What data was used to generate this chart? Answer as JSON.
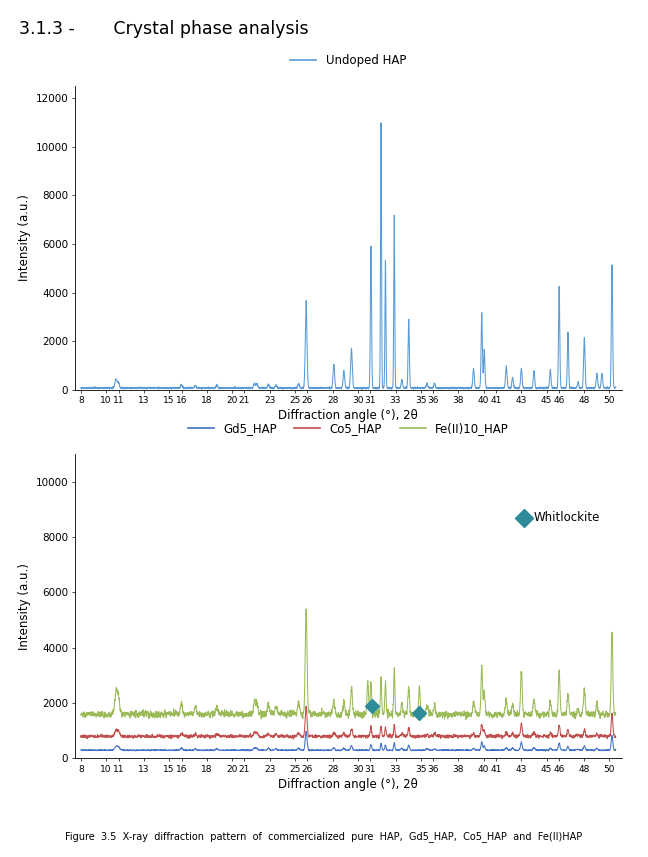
{
  "title_section": "3.1.3 -       Crystal phase analysis",
  "plot1_legend": "Undoped HAP",
  "plot1_color": "#5b9bd5",
  "plot1_ylabel": "Intensity (a.u.)",
  "plot1_xlabel": "Diffraction angle (°), 2θ",
  "plot1_ylim": [
    0,
    12500
  ],
  "plot1_yticks": [
    0,
    2000,
    4000,
    6000,
    8000,
    10000,
    12000
  ],
  "plot2_legend": [
    "Gd5_HAP",
    "Co5_HAP",
    "Fe(II)10_HAP"
  ],
  "plot2_colors": [
    "#4472c4",
    "#c0504d",
    "#9bbb59"
  ],
  "plot2_ylabel": "Intensity (a.u.)",
  "plot2_xlabel": "Diffraction angle (°), 2θ",
  "plot2_ylim": [
    0,
    11000
  ],
  "plot2_yticks": [
    0,
    2000,
    4000,
    6000,
    8000,
    10000
  ],
  "whitlockite_color": "#2e8b9a",
  "xticks": [
    8,
    10,
    11,
    13,
    15,
    16,
    18,
    20,
    21,
    23,
    25,
    26,
    28,
    30,
    31,
    33,
    35,
    36,
    38,
    40,
    41,
    43,
    45,
    46,
    48,
    50
  ],
  "xlim": [
    7.5,
    51
  ],
  "caption": "Figure  3.5  X-ray  diffraction  pattern  of  commercialized  pure  HAP,  Gd5_HAP,  Co5_HAP  and  Fe(II)HAP"
}
